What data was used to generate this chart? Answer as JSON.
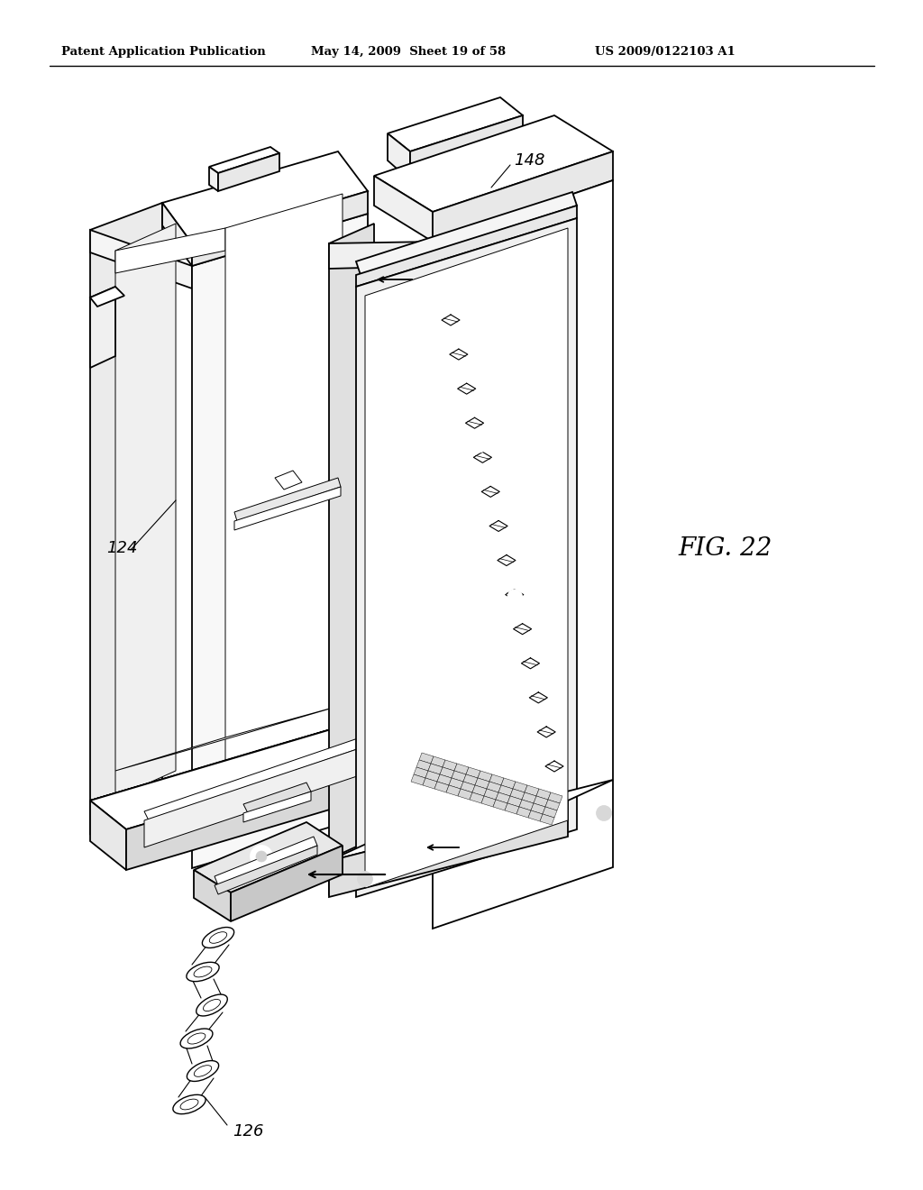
{
  "title_line1": "Patent Application Publication",
  "title_line2": "May 14, 2009  Sheet 19 of 58",
  "title_line3": "US 2009/0122103 A1",
  "fig_label": "FIG. 22",
  "label_124": "124",
  "label_126": "126",
  "label_148": "148",
  "bg_color": "#ffffff",
  "line_color": "#000000",
  "lw": 1.3,
  "lw_thin": 0.7,
  "lw_thick": 1.8
}
